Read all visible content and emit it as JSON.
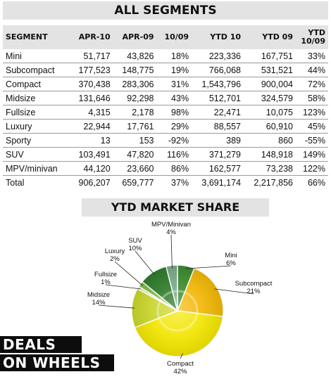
{
  "title": "ALL SEGMENTS",
  "table": {
    "headers": [
      "SEGMENT",
      "APR-10",
      "APR-09",
      "10/09",
      "YTD 10",
      "YTD 09",
      "YTD 10/09"
    ],
    "rows": [
      [
        "Mini",
        "51,717",
        "43,826",
        "18%",
        "223,336",
        "167,751",
        "33%"
      ],
      [
        "Subcompact",
        "177,523",
        "148,775",
        "19%",
        "766,068",
        "531,521",
        "44%"
      ],
      [
        "Compact",
        "370,438",
        "283,306",
        "31%",
        "1,543,796",
        "900,004",
        "72%"
      ],
      [
        "Midsize",
        "131,646",
        "92,298",
        "43%",
        "512,701",
        "324,579",
        "58%"
      ],
      [
        "Fullsize",
        "4,315",
        "2,178",
        "98%",
        "22,471",
        "10,075",
        "123%"
      ],
      [
        "Luxury",
        "22,944",
        "17,761",
        "29%",
        "88,557",
        "60,910",
        "45%"
      ],
      [
        "Sporty",
        "13",
        "153",
        "-92%",
        "389",
        "860",
        "-55%"
      ],
      [
        "SUV",
        "103,491",
        "47,820",
        "116%",
        "371,279",
        "148,918",
        "149%"
      ],
      [
        "MPV/minivan",
        "44,120",
        "23,660",
        "86%",
        "162,577",
        "73,238",
        "122%"
      ],
      [
        "Total",
        "906,207",
        "659,777",
        "37%",
        "3,691,174",
        "2,217,856",
        "66%"
      ]
    ]
  },
  "chart_data": {
    "type": "pie",
    "title": "YTD MARKET SHARE",
    "slices": [
      {
        "name": "Mini",
        "value": 6,
        "label": "6%",
        "color": "#3c8a2e"
      },
      {
        "name": "Subcompact",
        "value": 21,
        "label": "21%",
        "color": "#f2b705"
      },
      {
        "name": "Compact",
        "value": 42,
        "label": "42%",
        "color": "#f2e600"
      },
      {
        "name": "Midsize",
        "value": 14,
        "label": "14%",
        "color": "#c9d62a"
      },
      {
        "name": "Fullsize",
        "value": 1,
        "label": "1%",
        "color": "#e8edb0"
      },
      {
        "name": "Luxury",
        "value": 2,
        "label": "2%",
        "color": "#7dbb45"
      },
      {
        "name": "SUV",
        "value": 10,
        "label": "10%",
        "color": "#2f7a2a"
      },
      {
        "name": "MPV/Minivan",
        "value": 4,
        "label": "4%",
        "color": "#7aa88c"
      }
    ]
  },
  "logo": {
    "line1": "DEALS",
    "line2": "ON WHEELS"
  }
}
